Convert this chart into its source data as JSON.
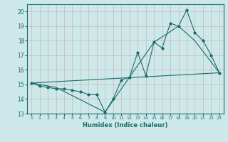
{
  "title": "",
  "xlabel": "Humidex (Indice chaleur)",
  "xlim": [
    -0.5,
    23.5
  ],
  "ylim": [
    13,
    20.5
  ],
  "yticks": [
    13,
    14,
    15,
    16,
    17,
    18,
    19,
    20
  ],
  "xticks": [
    0,
    1,
    2,
    3,
    4,
    5,
    6,
    7,
    8,
    9,
    10,
    11,
    12,
    13,
    14,
    15,
    16,
    17,
    18,
    19,
    20,
    21,
    22,
    23
  ],
  "bg_color": "#cce8e8",
  "line_color": "#1a6b6b",
  "line1_x": [
    0,
    1,
    2,
    3,
    4,
    5,
    6,
    7,
    8,
    9,
    10,
    11,
    12,
    13,
    14,
    15,
    16,
    17,
    18,
    19,
    20,
    21,
    22,
    23
  ],
  "line1_y": [
    15.1,
    14.9,
    14.8,
    14.7,
    14.7,
    14.6,
    14.5,
    14.3,
    14.3,
    13.1,
    14.0,
    15.3,
    15.5,
    17.2,
    15.6,
    17.9,
    17.5,
    19.2,
    19.0,
    20.1,
    18.55,
    18.0,
    17.0,
    15.8
  ],
  "line2_x": [
    0,
    3,
    9,
    15,
    18,
    20,
    23
  ],
  "line2_y": [
    15.1,
    14.8,
    13.1,
    17.9,
    19.0,
    18.0,
    15.8
  ],
  "line3_x": [
    0,
    23
  ],
  "line3_y": [
    15.1,
    15.8
  ]
}
